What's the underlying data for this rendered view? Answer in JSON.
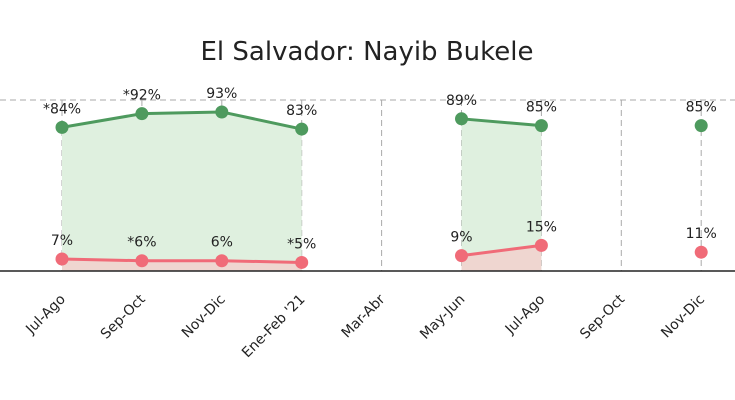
{
  "chart_data": {
    "type": "line",
    "title": "El Salvador: Nayib Bukele",
    "categories": [
      "Jul-Ago",
      "Sep-Oct",
      "Nov-Dic",
      "Ene-Feb '21",
      "Mar-Abr",
      "May-Jun",
      "Jul-Ago",
      "Sep-Oct",
      "Nov-Dic"
    ],
    "series": [
      {
        "color": "#4e9a5e",
        "fill": "#dff0df",
        "values": [
          84,
          92,
          93,
          83,
          null,
          89,
          85,
          null,
          85
        ],
        "value_labels": [
          "*84%",
          "*92%",
          "93%",
          "83%",
          null,
          "89%",
          "85%",
          null,
          "85%"
        ]
      },
      {
        "color": "#f06b78",
        "fill": "#efd6d0",
        "values": [
          7,
          6,
          6,
          5,
          null,
          9,
          15,
          null,
          11
        ],
        "value_labels": [
          "7%",
          "*6%",
          "6%",
          "*5%",
          null,
          "9%",
          "15%",
          null,
          "11%"
        ]
      }
    ],
    "ylim": [
      0,
      100
    ],
    "grid": true
  }
}
